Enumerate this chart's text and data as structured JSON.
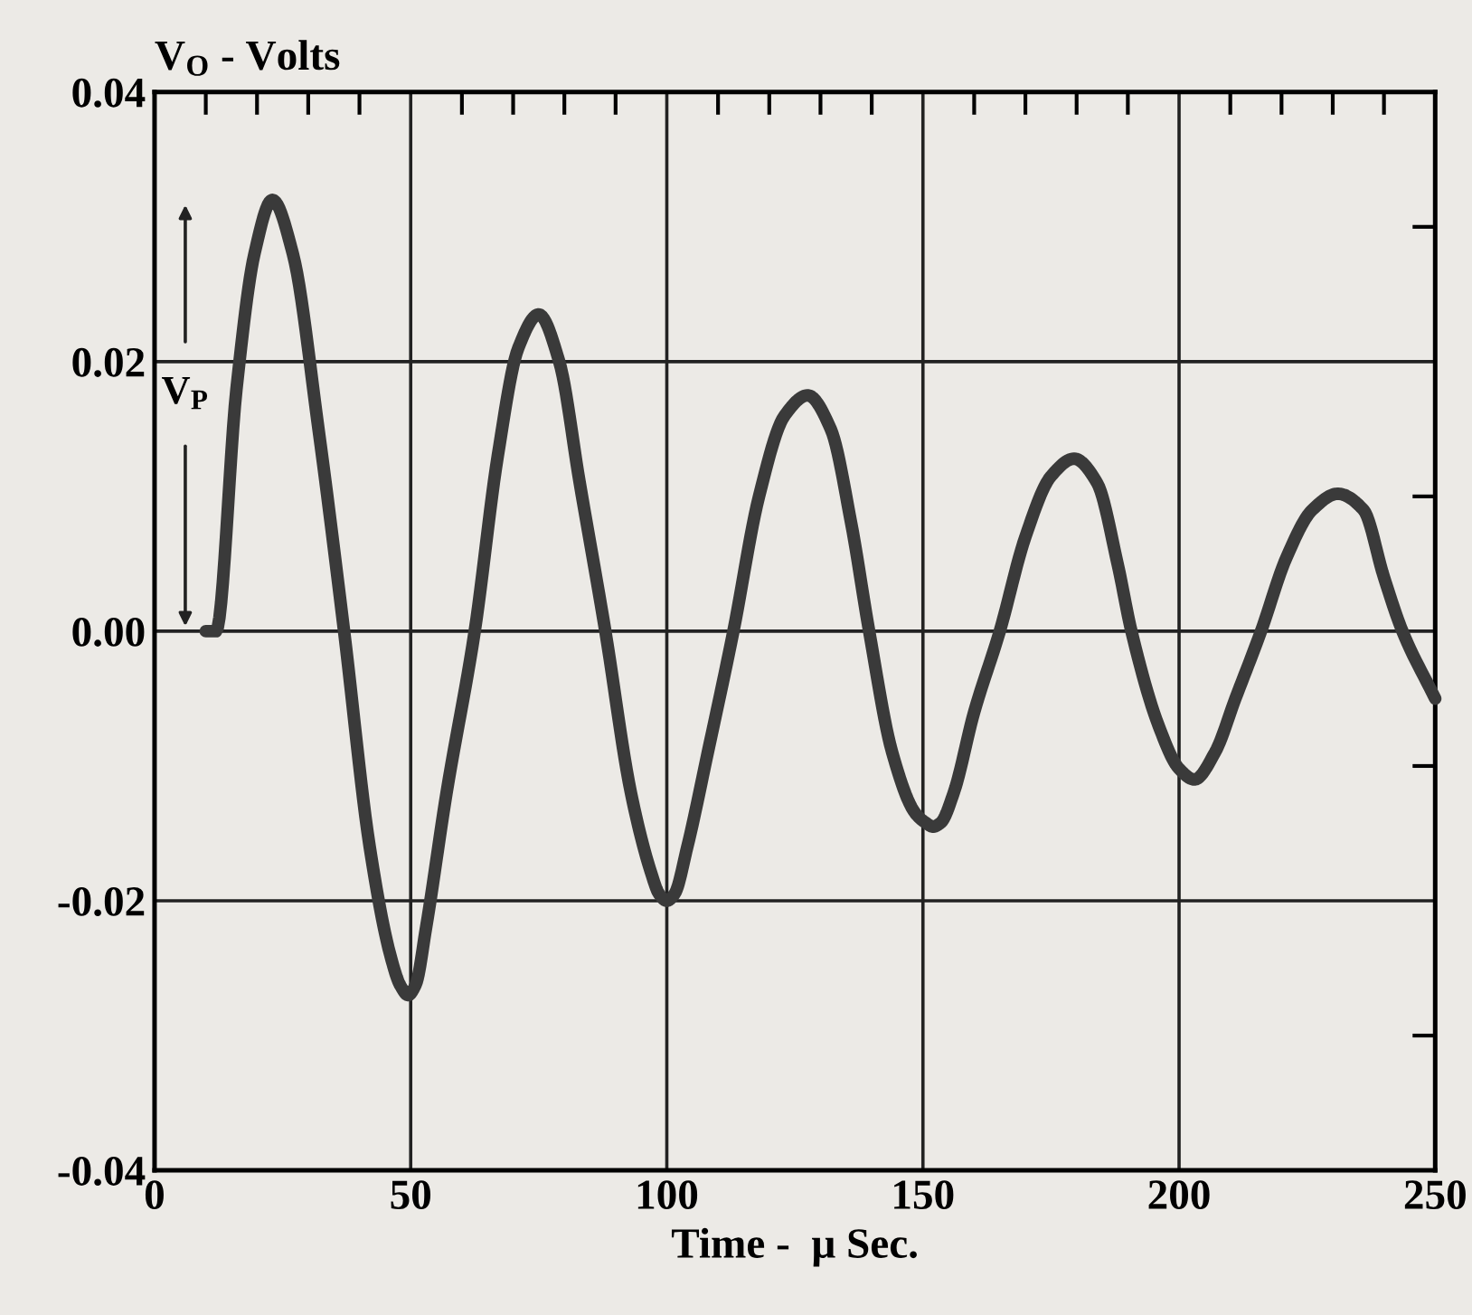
{
  "chart_data": {
    "type": "line",
    "xlabel": "Time -  μ Sec.",
    "ylabel": "V$_{O}$ - Volts",
    "xlim": [
      0,
      250
    ],
    "xticks": [
      0,
      50,
      100,
      150,
      200,
      250
    ],
    "ylim": [
      -0.04,
      0.04
    ],
    "yticks": [
      {
        "value": -0.04,
        "label": "-0.04"
      },
      {
        "value": -0.02,
        "label": "-0.02"
      },
      {
        "value": 0,
        "label": "0.00"
      },
      {
        "value": 0.02,
        "label": "0.02"
      },
      {
        "value": 0.04,
        "label": "0.04"
      }
    ],
    "grid": true,
    "marker": "none",
    "line_style": "solid",
    "annotations": [
      "V$_{P}$"
    ],
    "series": [
      {
        "color": "#3a3a3a",
        "x": [
          10,
          12,
          16,
          19.5,
          23,
          27,
          32,
          37,
          42,
          46,
          48,
          49.5,
          51,
          53,
          57,
          62.5,
          67,
          71,
          75,
          79,
          83,
          88,
          93,
          97,
          98.5,
          100,
          101.5,
          104,
          108,
          113,
          118,
          123,
          127.5,
          132,
          136,
          139.5,
          144,
          148.5,
          150.5,
          152,
          153.5,
          156,
          160,
          165,
          170,
          175,
          179.5,
          184,
          188,
          190.7,
          196,
          200,
          203,
          207,
          211,
          216,
          221,
          226,
          231,
          236,
          240,
          243.6,
          250
        ],
        "values": [
          0,
          0,
          0.018,
          0.028,
          0.032,
          0.028,
          0.015,
          0,
          -0.016,
          -0.024,
          -0.0263,
          -0.027,
          -0.0262,
          -0.022,
          -0.012,
          0,
          0.013,
          0.021,
          0.0235,
          0.02,
          0.011,
          0,
          -0.012,
          -0.018,
          -0.0195,
          -0.02,
          -0.0195,
          -0.016,
          -0.009,
          0,
          0.01,
          0.016,
          0.0175,
          0.015,
          0.008,
          0,
          -0.009,
          -0.0135,
          -0.0142,
          -0.0145,
          -0.0142,
          -0.012,
          -0.006,
          0,
          0.007,
          0.0115,
          0.0128,
          0.011,
          0.005,
          0,
          -0.007,
          -0.0102,
          -0.011,
          -0.009,
          -0.005,
          0,
          0.0055,
          0.009,
          0.0102,
          0.009,
          0.004,
          0,
          -0.005
        ]
      }
    ]
  }
}
